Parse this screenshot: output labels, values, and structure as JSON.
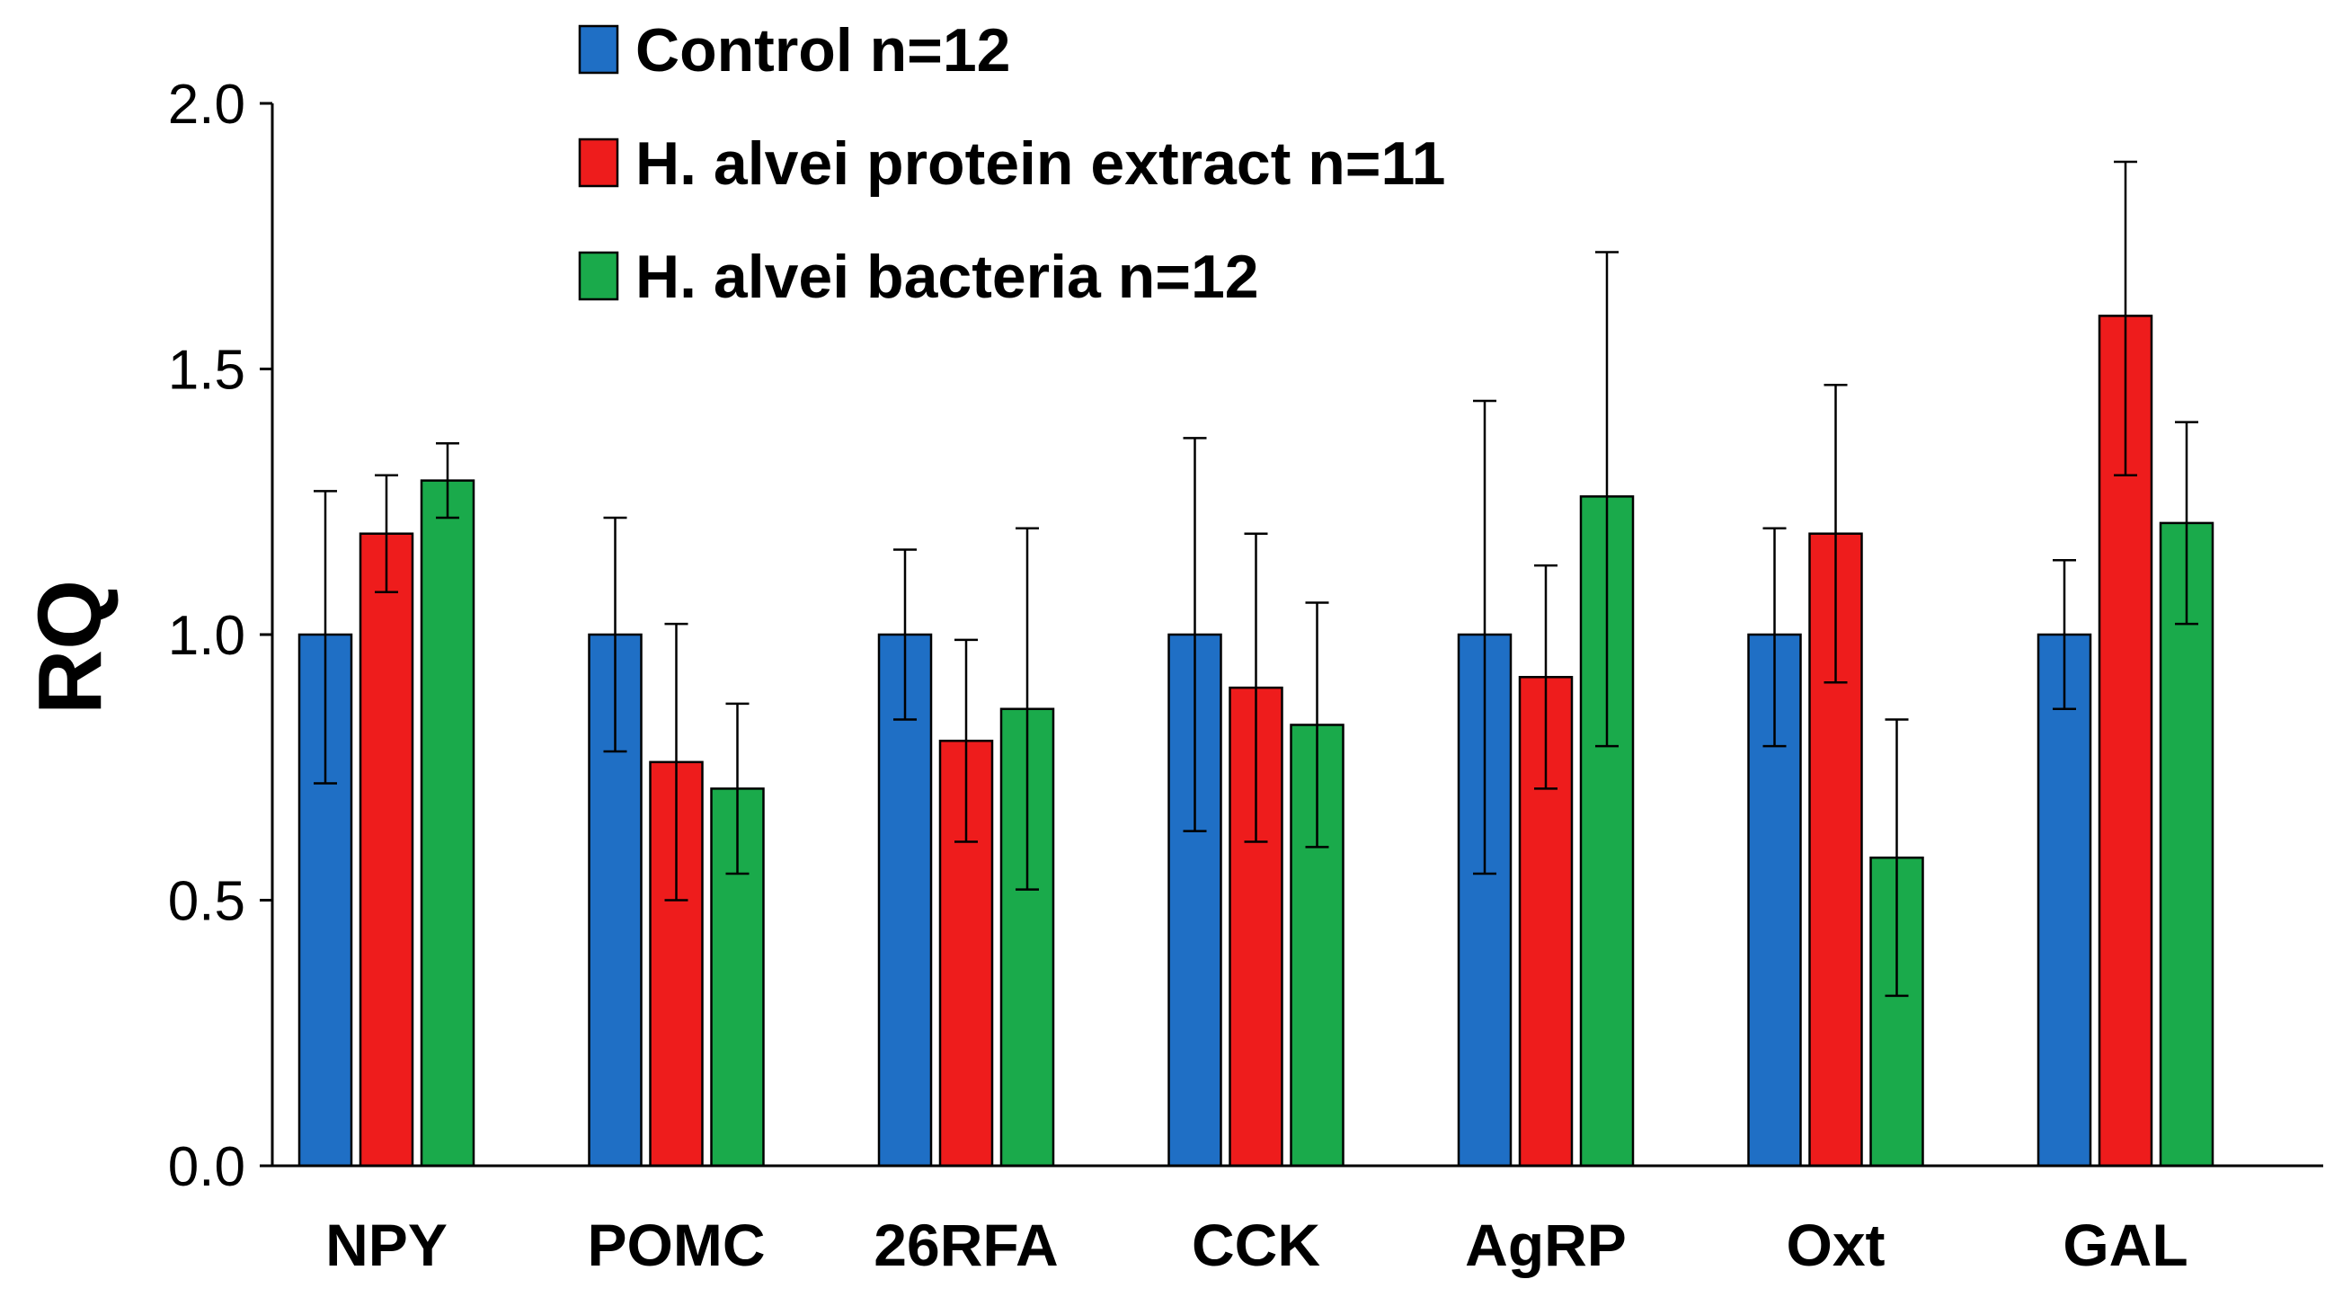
{
  "chart_data": {
    "type": "bar",
    "title": "",
    "xlabel": "",
    "ylabel": "RQ",
    "ylim": [
      0,
      2
    ],
    "yticks": [
      "0.0",
      "0.5",
      "1.0",
      "1.5",
      "2.0"
    ],
    "ytick_values": [
      0,
      0.5,
      1.0,
      1.5,
      2.0
    ],
    "grid": false,
    "legend_position": "top-center",
    "categories": [
      "NPY",
      "POMC",
      "26RFA",
      "CCK",
      "AgRP",
      "Oxt",
      "GAL"
    ],
    "series": [
      {
        "name": "Control n=12",
        "color": "#1f6fc5",
        "values": [
          1.0,
          1.0,
          1.0,
          1.0,
          1.0,
          1.0,
          1.0
        ],
        "err_low": [
          0.72,
          0.78,
          0.84,
          0.63,
          0.55,
          0.79,
          0.86
        ],
        "err_high": [
          1.27,
          1.22,
          1.16,
          1.37,
          1.44,
          1.2,
          1.14
        ]
      },
      {
        "name": "H. alvei protein extract n=11",
        "color": "#ee1c1c",
        "values": [
          1.19,
          0.76,
          0.8,
          0.9,
          0.92,
          1.19,
          1.6
        ],
        "err_low": [
          1.08,
          0.5,
          0.61,
          0.61,
          0.71,
          0.91,
          1.3
        ],
        "err_high": [
          1.3,
          1.02,
          0.99,
          1.19,
          1.13,
          1.47,
          1.89
        ]
      },
      {
        "name": "H. alvei bacteria n=12",
        "color": "#1aaa4b",
        "values": [
          1.29,
          0.71,
          0.86,
          0.83,
          1.26,
          0.58,
          1.21
        ],
        "err_low": [
          1.22,
          0.55,
          0.52,
          0.6,
          0.79,
          0.32,
          1.02
        ],
        "err_high": [
          1.36,
          0.87,
          1.2,
          1.06,
          1.72,
          0.84,
          1.4
        ]
      }
    ]
  }
}
